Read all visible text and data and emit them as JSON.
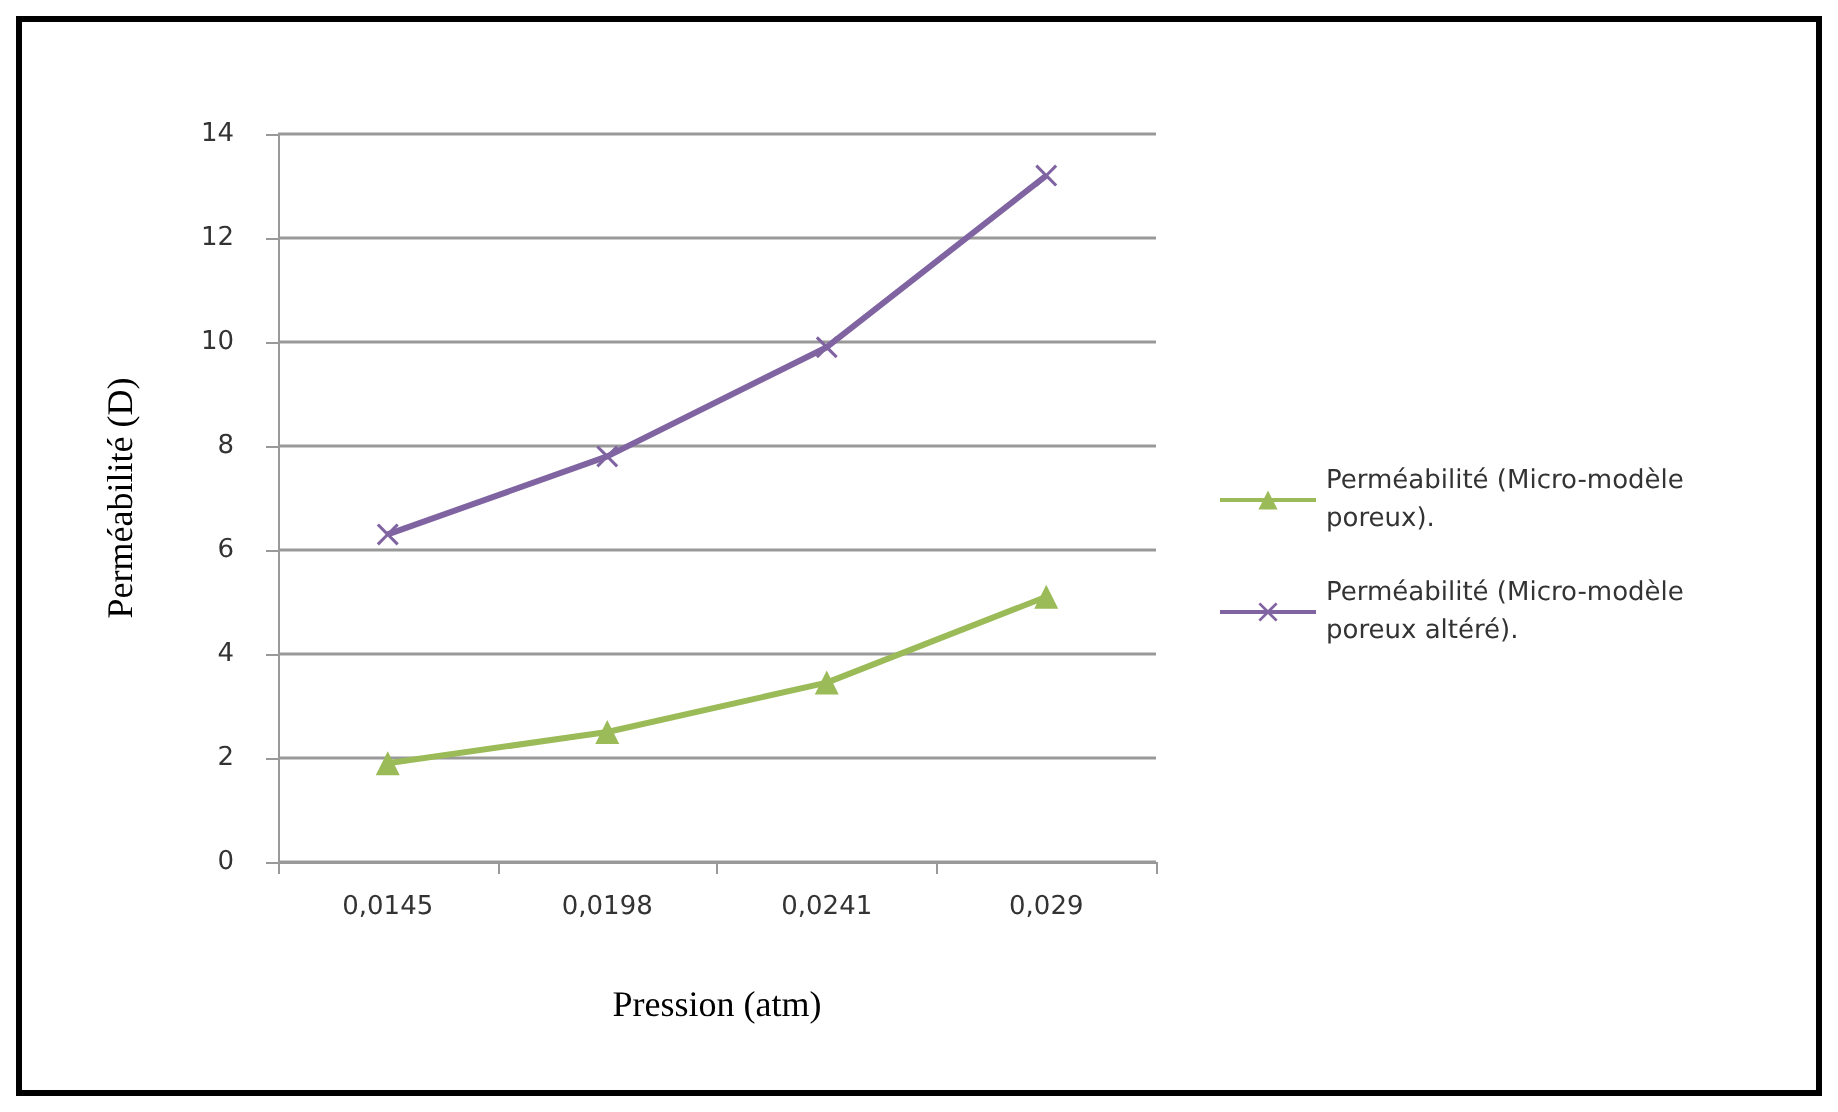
{
  "chart_data": {
    "type": "line",
    "xlabel": "Pression (atm)",
    "ylabel": "Perméabilité (D)",
    "categories": [
      "0,0145",
      "0,0198",
      "0,0241",
      "0,029"
    ],
    "series": [
      {
        "name": "Perméabilité (Micro-modèle poreux).",
        "color": "#9bbb59",
        "marker": "triangle",
        "values": [
          1.9,
          2.5,
          3.45,
          5.1
        ]
      },
      {
        "name": "Perméabilité (Micro-modèle poreux altéré).",
        "color": "#8064a2",
        "marker": "cross",
        "values": [
          6.3,
          7.8,
          9.9,
          13.2
        ]
      }
    ],
    "ylim": [
      0,
      14
    ],
    "yticks": [
      0,
      2,
      4,
      6,
      8,
      10,
      12,
      14
    ],
    "grid": "y",
    "legend": "right"
  }
}
